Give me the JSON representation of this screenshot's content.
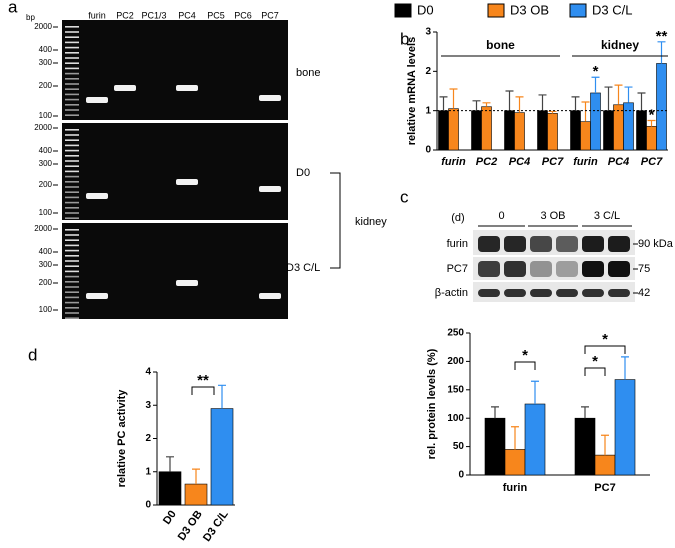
{
  "panels": [
    "a",
    "b",
    "c",
    "d"
  ],
  "gel": {
    "unit": "bp",
    "lanes": [
      "furin",
      "PC2",
      "PC1/3",
      "PC4",
      "PC5",
      "PC6",
      "PC7"
    ],
    "ladders": [
      [
        "2000",
        "400",
        "300",
        "200",
        "100"
      ],
      [
        "2000",
        "400",
        "300",
        "200",
        "100"
      ],
      [
        "2000",
        "400",
        "300",
        "200",
        "100"
      ]
    ],
    "row_labels": [
      "bone",
      "D0",
      "kidney",
      "D3 C/L"
    ]
  },
  "blot": {
    "header": "(d)",
    "groups": [
      "0",
      "3 OB",
      "3 C/L"
    ],
    "rows": [
      "furin",
      "PC7",
      "β-actin"
    ],
    "sizes": [
      "90 kDa",
      "75",
      "42"
    ]
  },
  "chart_data": [
    {
      "type": "bar",
      "ylabel": "relative mRNA levels",
      "categories": [
        "furin",
        "PC2",
        "PC4",
        "PC7",
        "furin",
        "PC4",
        "PC7"
      ],
      "groups": [
        "bone",
        "kidney"
      ],
      "series": [
        {
          "name": "D0",
          "color": "#000000",
          "values": [
            1.0,
            1.0,
            1.0,
            1.0,
            1.0,
            1.0,
            1.0
          ],
          "errors": [
            0.35,
            0.25,
            0.5,
            0.4,
            0.35,
            0.6,
            0.45
          ]
        },
        {
          "name": "D3 OB",
          "color": "#f7861c",
          "values": [
            1.05,
            1.1,
            0.95,
            0.93,
            0.72,
            1.15,
            0.6
          ],
          "errors": [
            0.5,
            0.1,
            0.4,
            0.05,
            0.5,
            0.5,
            0.15
          ]
        },
        {
          "name": "D3 C/L",
          "color": "#2f8ef0",
          "values": [
            null,
            null,
            null,
            null,
            1.45,
            1.2,
            2.2
          ],
          "errors": [
            null,
            null,
            null,
            null,
            0.4,
            0.4,
            0.55
          ]
        }
      ],
      "reference": 1,
      "ylim": [
        0,
        3
      ],
      "yticks": [
        0,
        1,
        2,
        3
      ],
      "annotations": [
        "*",
        "*",
        "**"
      ]
    },
    {
      "type": "bar",
      "ylabel": "rel. protein levels (%)",
      "categories": [
        "furin",
        "PC7"
      ],
      "series": [
        {
          "color": "#000000",
          "values": [
            100,
            100
          ],
          "errors": [
            20,
            20
          ]
        },
        {
          "color": "#f7861c",
          "values": [
            45,
            35
          ],
          "errors": [
            40,
            35
          ]
        },
        {
          "color": "#2f8ef0",
          "values": [
            125,
            168
          ],
          "errors": [
            40,
            40
          ]
        }
      ],
      "ylim": [
        0,
        250
      ],
      "yticks": [
        0,
        50,
        100,
        150,
        200,
        250
      ],
      "annotations": [
        "*",
        "*",
        "*"
      ]
    },
    {
      "type": "bar",
      "ylabel": "relative PC activity",
      "categories": [
        "D0",
        "D3 OB",
        "D3 C/L"
      ],
      "series": [
        {
          "colors": [
            "#000000",
            "#f7861c",
            "#2f8ef0"
          ],
          "values": [
            1.0,
            0.63,
            2.9
          ],
          "errors": [
            0.45,
            0.45,
            0.7
          ]
        }
      ],
      "ylim": [
        0,
        4
      ],
      "yticks": [
        0,
        1,
        2,
        3,
        4
      ],
      "annotations": [
        "**"
      ]
    }
  ]
}
